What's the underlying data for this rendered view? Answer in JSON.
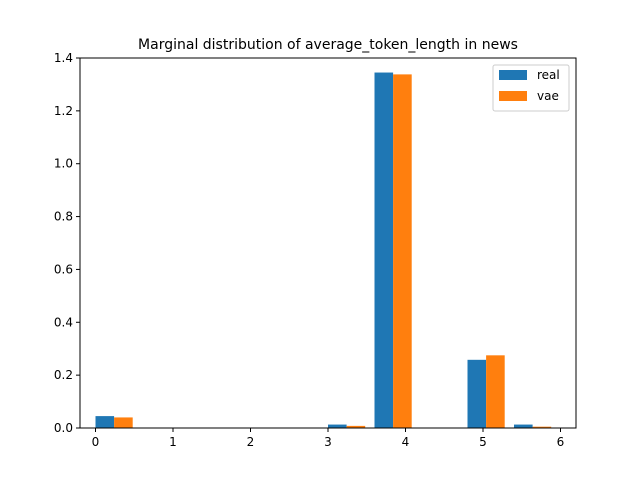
{
  "chart_data": {
    "type": "bar",
    "title": "Marginal distribution of average_token_length in news",
    "xlabel": "",
    "ylabel": "",
    "xlim": [
      -0.2,
      6.2
    ],
    "ylim": [
      0,
      1.4
    ],
    "xticks": [
      0,
      1,
      2,
      3,
      4,
      5,
      6
    ],
    "xtick_labels": [
      "0",
      "1",
      "2",
      "3",
      "4",
      "5",
      "6"
    ],
    "yticks": [
      0.0,
      0.2,
      0.4,
      0.6,
      0.8,
      1.0,
      1.2,
      1.4
    ],
    "ytick_labels": [
      "0.0",
      "0.2",
      "0.4",
      "0.6",
      "0.8",
      "1.0",
      "1.2",
      "1.4"
    ],
    "grid": false,
    "legend_position": "top-right",
    "bin_edges": [
      0.0,
      0.6,
      1.2,
      1.8,
      2.4,
      3.0,
      3.6,
      4.2,
      4.8,
      5.4,
      6.0
    ],
    "series": [
      {
        "name": "real",
        "color": "#1f77b4",
        "values": [
          0.045,
          0.0,
          0.0,
          0.0,
          0.0,
          0.013,
          1.345,
          0.0,
          0.258,
          0.013
        ]
      },
      {
        "name": "vae",
        "color": "#ff7f0e",
        "values": [
          0.04,
          0.0,
          0.0,
          0.0,
          0.0,
          0.008,
          1.338,
          0.0,
          0.275,
          0.005
        ]
      }
    ]
  }
}
